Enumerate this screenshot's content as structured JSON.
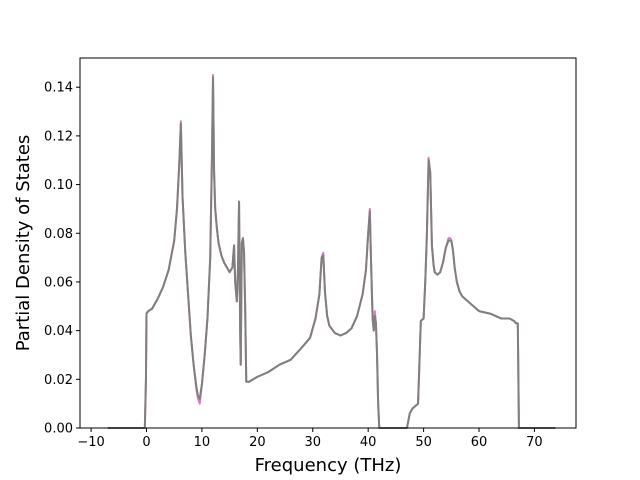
{
  "chart_data": {
    "type": "line",
    "title": "",
    "xlabel": "Frequency (THz)",
    "ylabel": "Partial Density of States",
    "xlim": [
      -12.0,
      77.5
    ],
    "ylim": [
      0.0,
      0.152
    ],
    "x_ticks": [
      -10,
      0,
      10,
      20,
      30,
      40,
      50,
      60,
      70
    ],
    "x_tick_labels": [
      "−10",
      "0",
      "10",
      "20",
      "30",
      "40",
      "50",
      "60",
      "70"
    ],
    "y_ticks": [
      0.0,
      0.02,
      0.04,
      0.06,
      0.08,
      0.1,
      0.12,
      0.14
    ],
    "y_tick_labels": [
      "0.00",
      "0.02",
      "0.04",
      "0.06",
      "0.08",
      "0.10",
      "0.12",
      "0.14"
    ],
    "grid": false,
    "legend": "none",
    "series": [
      {
        "color": "#e377c2",
        "x": [
          -7.0,
          -0.3,
          -0.1,
          0.0,
          0.3,
          1.0,
          2.0,
          3.0,
          4.0,
          5.0,
          5.5,
          5.9,
          6.2,
          6.5,
          7.0,
          7.5,
          8.0,
          8.5,
          9.0,
          9.3,
          9.6,
          10.0,
          10.5,
          11.0,
          11.5,
          11.8,
          12.0,
          12.2,
          12.4,
          12.7,
          13.0,
          13.5,
          14.0,
          14.5,
          15.0,
          15.5,
          15.8,
          16.0,
          16.3,
          16.5,
          16.7,
          16.9,
          17.0,
          17.2,
          17.4,
          17.6,
          17.8,
          18.0,
          18.5,
          20.0,
          22.0,
          24.0,
          26.0,
          28.0,
          29.5,
          30.5,
          31.2,
          31.6,
          31.9,
          32.2,
          32.6,
          33.0,
          34.0,
          35.0,
          36.0,
          37.0,
          38.0,
          39.0,
          39.6,
          40.0,
          40.3,
          40.5,
          40.8,
          41.0,
          41.2,
          41.4,
          41.6,
          41.8,
          42.0,
          42.2,
          47.0,
          47.5,
          48.0,
          49.0,
          49.5,
          50.0,
          50.3,
          50.6,
          50.9,
          51.2,
          51.5,
          51.8,
          52.0,
          52.5,
          53.0,
          53.5,
          54.0,
          54.5,
          54.8,
          55.0,
          55.3,
          55.6,
          56.0,
          56.5,
          57.0,
          58.0,
          60.0,
          62.0,
          64.0,
          65.5,
          66.3,
          66.7,
          67.0,
          67.2,
          73.8
        ],
        "y": [
          0.0,
          0.0,
          0.02,
          0.047,
          0.048,
          0.049,
          0.053,
          0.058,
          0.065,
          0.077,
          0.09,
          0.108,
          0.126,
          0.095,
          0.072,
          0.055,
          0.038,
          0.026,
          0.016,
          0.012,
          0.01,
          0.018,
          0.03,
          0.045,
          0.07,
          0.11,
          0.145,
          0.105,
          0.09,
          0.082,
          0.076,
          0.071,
          0.068,
          0.066,
          0.064,
          0.066,
          0.075,
          0.06,
          0.052,
          0.065,
          0.093,
          0.04,
          0.026,
          0.076,
          0.078,
          0.072,
          0.05,
          0.019,
          0.019,
          0.021,
          0.023,
          0.026,
          0.028,
          0.033,
          0.037,
          0.045,
          0.055,
          0.07,
          0.072,
          0.056,
          0.046,
          0.042,
          0.039,
          0.038,
          0.039,
          0.041,
          0.046,
          0.055,
          0.065,
          0.08,
          0.09,
          0.07,
          0.045,
          0.04,
          0.048,
          0.043,
          0.03,
          0.01,
          0.0,
          0.0,
          0.0,
          0.006,
          0.008,
          0.01,
          0.044,
          0.045,
          0.06,
          0.08,
          0.111,
          0.105,
          0.075,
          0.067,
          0.064,
          0.063,
          0.064,
          0.068,
          0.074,
          0.078,
          0.078,
          0.077,
          0.073,
          0.066,
          0.06,
          0.056,
          0.054,
          0.052,
          0.048,
          0.047,
          0.045,
          0.045,
          0.044,
          0.043,
          0.043,
          0.0,
          0.0
        ]
      },
      {
        "color": "#7f7f7f",
        "x": [
          -7.0,
          -0.3,
          -0.1,
          0.0,
          0.3,
          1.0,
          2.0,
          3.0,
          4.0,
          5.0,
          5.5,
          5.9,
          6.2,
          6.5,
          7.0,
          7.5,
          8.0,
          8.5,
          9.0,
          9.3,
          9.6,
          10.0,
          10.5,
          11.0,
          11.5,
          11.8,
          12.0,
          12.2,
          12.4,
          12.7,
          13.0,
          13.5,
          14.0,
          14.5,
          15.0,
          15.5,
          15.8,
          16.0,
          16.3,
          16.5,
          16.7,
          16.9,
          17.0,
          17.2,
          17.4,
          17.6,
          17.8,
          18.0,
          18.5,
          20.0,
          22.0,
          24.0,
          26.0,
          28.0,
          29.5,
          30.5,
          31.2,
          31.6,
          31.9,
          32.2,
          32.6,
          33.0,
          34.0,
          35.0,
          36.0,
          37.0,
          38.0,
          39.0,
          39.6,
          40.0,
          40.3,
          40.5,
          40.8,
          41.0,
          41.2,
          41.4,
          41.6,
          41.8,
          42.0,
          42.2,
          47.0,
          47.5,
          48.0,
          49.0,
          49.5,
          50.0,
          50.3,
          50.6,
          50.9,
          51.2,
          51.5,
          51.8,
          52.0,
          52.5,
          53.0,
          53.5,
          54.0,
          54.5,
          54.8,
          55.0,
          55.3,
          55.6,
          56.0,
          56.5,
          57.0,
          58.0,
          60.0,
          62.0,
          64.0,
          65.5,
          66.3,
          66.7,
          67.0,
          67.2,
          73.8
        ],
        "y": [
          0.0,
          0.0,
          0.02,
          0.047,
          0.048,
          0.049,
          0.053,
          0.058,
          0.065,
          0.077,
          0.09,
          0.108,
          0.125,
          0.095,
          0.072,
          0.055,
          0.038,
          0.026,
          0.017,
          0.013,
          0.012,
          0.018,
          0.03,
          0.045,
          0.07,
          0.11,
          0.144,
          0.105,
          0.09,
          0.082,
          0.076,
          0.071,
          0.068,
          0.066,
          0.064,
          0.066,
          0.075,
          0.06,
          0.052,
          0.065,
          0.093,
          0.04,
          0.026,
          0.076,
          0.078,
          0.072,
          0.05,
          0.019,
          0.019,
          0.021,
          0.023,
          0.026,
          0.028,
          0.033,
          0.037,
          0.045,
          0.055,
          0.07,
          0.071,
          0.056,
          0.046,
          0.042,
          0.039,
          0.038,
          0.039,
          0.041,
          0.046,
          0.055,
          0.065,
          0.08,
          0.089,
          0.07,
          0.045,
          0.04,
          0.046,
          0.043,
          0.03,
          0.01,
          0.0,
          0.0,
          0.0,
          0.006,
          0.008,
          0.01,
          0.044,
          0.045,
          0.06,
          0.08,
          0.11,
          0.105,
          0.075,
          0.067,
          0.064,
          0.063,
          0.064,
          0.068,
          0.074,
          0.077,
          0.077,
          0.077,
          0.073,
          0.066,
          0.06,
          0.056,
          0.054,
          0.052,
          0.048,
          0.047,
          0.045,
          0.045,
          0.044,
          0.043,
          0.043,
          0.0,
          0.0
        ]
      }
    ]
  }
}
